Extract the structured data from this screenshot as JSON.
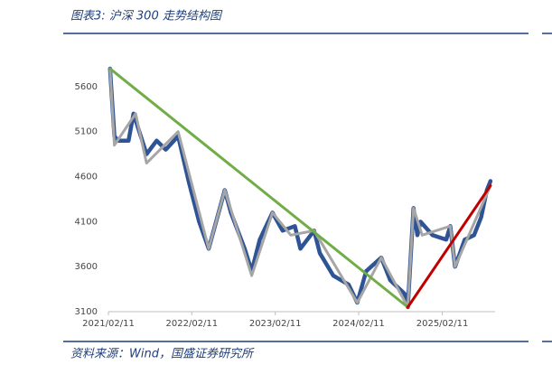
{
  "chart_data": {
    "type": "line",
    "title": "图表3:  沪深 300 走势结构图",
    "source": "资料来源：Wind，国盛证券研究所",
    "xlim": [
      "2021/02/11",
      "2025/09/30"
    ],
    "xticks": [
      "2021/02/11",
      "2022/02/11",
      "2023/02/11",
      "2024/02/11",
      "2025/02/11"
    ],
    "ylim": [
      3100,
      5900
    ],
    "yticks": [
      3100,
      3600,
      4100,
      4600,
      5100,
      5600
    ],
    "grid": false,
    "series": [
      {
        "color": "#2f5496",
        "width": 4.5,
        "x": [
          "2021/02/18",
          "2021/03/09",
          "2021/03/25",
          "2021/05/10",
          "2021/06/01",
          "2021/07/28",
          "2021/09/10",
          "2021/10/20",
          "2021/12/13",
          "2022/01/28",
          "2022/03/15",
          "2022/04/26",
          "2022/07/05",
          "2022/08/01",
          "2022/09/30",
          "2022/10/31",
          "2022/12/05",
          "2023/01/30",
          "2023/03/15",
          "2023/05/08",
          "2023/06/01",
          "2023/07/31",
          "2023/08/25",
          "2023/10/23",
          "2023/12/29",
          "2024/02/05",
          "2024/03/15",
          "2024/05/20",
          "2024/06/28",
          "2024/08/30",
          "2024/09/13",
          "2024/10/08",
          "2024/10/25",
          "2024/11/08",
          "2024/12/30",
          "2025/02/28",
          "2025/03/18",
          "2025/04/08",
          "2025/05/20",
          "2025/06/30",
          "2025/07/31",
          "2025/08/25",
          "2025/09/10"
        ],
        "values": [
          5800,
          5050,
          5000,
          5000,
          5300,
          4850,
          5000,
          4900,
          5050,
          4550,
          4100,
          3800,
          4450,
          4200,
          3800,
          3550,
          3900,
          4200,
          4000,
          4050,
          3800,
          4000,
          3750,
          3500,
          3400,
          3200,
          3550,
          3700,
          3450,
          3300,
          3150,
          4250,
          3950,
          4100,
          3950,
          3900,
          4050,
          3600,
          3900,
          3950,
          4150,
          4450,
          4550
        ]
      },
      {
        "color": "#a6a6a6",
        "width": 3,
        "x": [
          "2021/02/18",
          "2021/03/09",
          "2021/06/10",
          "2021/07/28",
          "2021/12/13",
          "2022/04/26",
          "2022/07/05",
          "2022/10/31",
          "2023/01/30",
          "2023/04/20",
          "2023/07/31",
          "2024/02/05",
          "2024/05/20",
          "2024/09/13",
          "2024/10/08",
          "2024/11/15",
          "2025/03/18",
          "2025/04/08",
          "2025/09/10"
        ],
        "values": [
          5800,
          4950,
          5300,
          4750,
          5100,
          3800,
          4450,
          3500,
          4200,
          3950,
          4000,
          3200,
          3700,
          3150,
          4250,
          3950,
          4050,
          3600,
          4500
        ]
      },
      {
        "color": "#70ad47",
        "width": 3,
        "x": [
          "2021/02/18",
          "2024/09/13"
        ],
        "values": [
          5800,
          3150
        ]
      },
      {
        "color": "#c00000",
        "width": 3,
        "x": [
          "2024/09/13",
          "2025/09/10"
        ],
        "values": [
          3150,
          4500
        ]
      }
    ]
  }
}
